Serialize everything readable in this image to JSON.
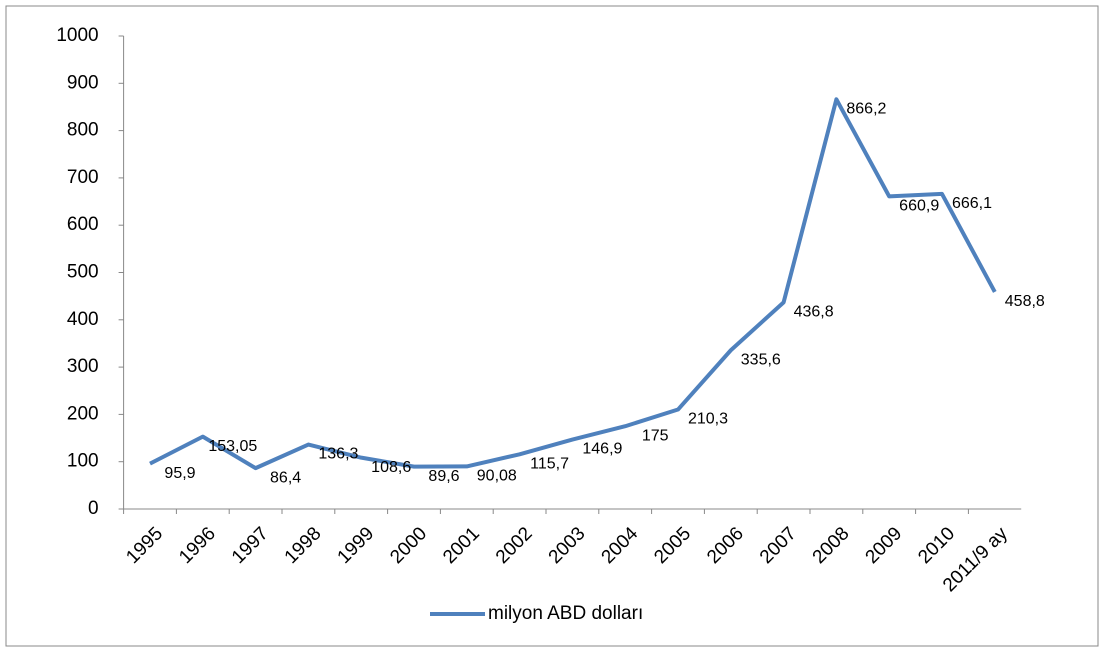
{
  "chart_data": {
    "type": "line",
    "categories": [
      "1995",
      "1996",
      "1997",
      "1998",
      "1999",
      "2000",
      "2001",
      "2002",
      "2003",
      "2004",
      "2005",
      "2006",
      "2007",
      "2008",
      "2009",
      "2010",
      "2011/9 ay"
    ],
    "series": [
      {
        "name": "milyon  ABD dolları",
        "color": "#4f81bd",
        "values": [
          95.9,
          153.05,
          86.4,
          136.3,
          108.6,
          89.6,
          90.08,
          115.7,
          146.9,
          175,
          210.3,
          335.6,
          436.8,
          866.2,
          660.9,
          666.1,
          458.8
        ],
        "value_labels": [
          "95,9",
          "153,05",
          "86,4",
          "136,3",
          "108,6",
          "89,6",
          "90,08",
          "115,7",
          "146,9",
          "175",
          "210,3",
          "335,6",
          "436,8",
          "866,2",
          "660,9",
          "666,1",
          "458,8"
        ]
      }
    ],
    "ylim": [
      0,
      1000
    ],
    "yticks": [
      0,
      100,
      200,
      300,
      400,
      500,
      600,
      700,
      800,
      900,
      1000
    ],
    "legend": "bottom"
  }
}
